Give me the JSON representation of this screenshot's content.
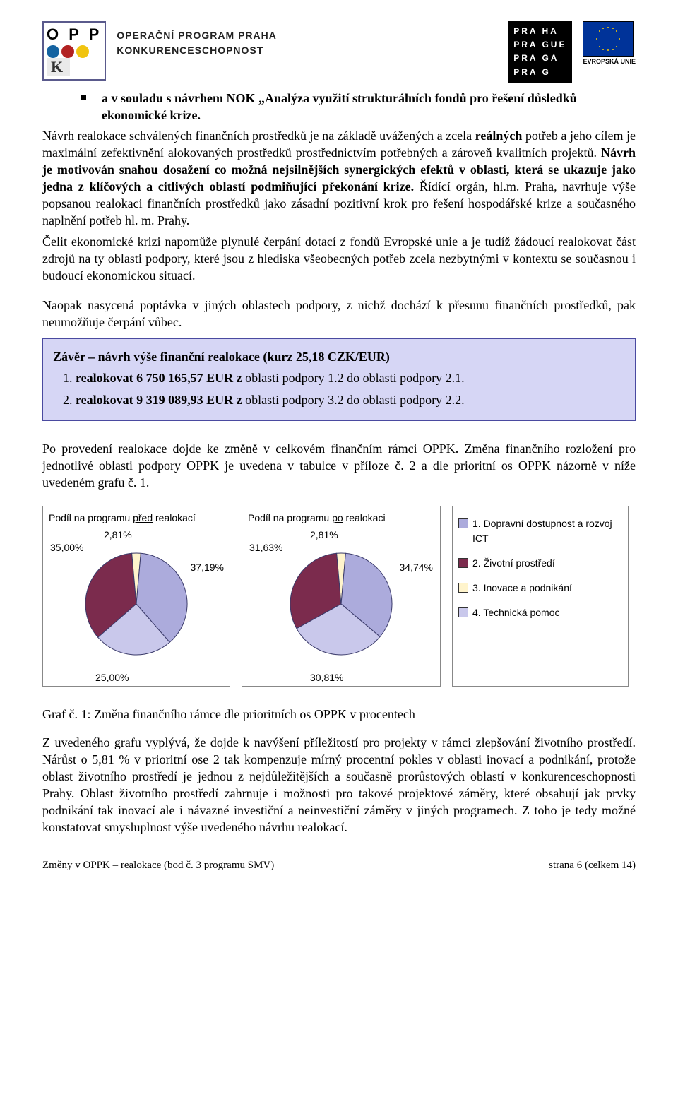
{
  "header": {
    "oppk": "O P P",
    "oppk_k": "K",
    "program_line1": "OPERAČNÍ PROGRAM PRAHA",
    "program_line2": "KONKURENCESCHOPNOST",
    "praha_lines": [
      "PRA HA",
      "PRA GUE",
      "PRA GA",
      "PRA G"
    ],
    "eu_label": "EVROPSKÁ UNIE"
  },
  "bullet": "a v souladu s návrhem NOK „Analýza využití strukturálních fondů pro řešení důsledků ekonomické krize.",
  "p1_a": "Návrh realokace schválených finančních prostředků je na základě uvážených a zcela ",
  "p1_b": "reálných",
  "p1_c": " potřeb a jeho cílem je maximální zefektivnění alokovaných prostředků prostřednictvím potřebných a zároveň kvalitních projektů. ",
  "p1_d": "Návrh je motivován snahou dosažení co možná nejsilnějších synergických efektů v oblasti, která se ukazuje jako jedna z klíčových a citlivých oblastí podmiňující překonání krize.",
  "p1_e": " Řídící orgán, hl.m. Praha, navrhuje výše popsanou realokaci finančních prostředků jako zásadní pozitivní krok pro řešení hospodářské krize a současného naplnění potřeb hl. m. Prahy.",
  "p2": "Čelit ekonomické krizi napomůže plynulé čerpání dotací z fondů Evropské unie a je tudíž žádoucí realokovat část zdrojů na ty oblasti podpory, které jsou z hlediska všeobecných potřeb zcela nezbytnými v kontextu se současnou i budoucí ekonomickou situací.",
  "p3": "Naopak nasycená poptávka v jiných oblastech podpory, z nichž dochází k přesunu finančních prostředků, pak neumožňuje čerpání vůbec.",
  "callout": {
    "title": "Závěr – návrh výše finanční realokace (kurz 25,18 CZK/EUR)",
    "l1a": "1. ",
    "l1b": "realokovat 6 750 165,57 EUR z",
    "l1c": " oblasti podpory 1.2 do oblasti podpory 2.1.",
    "l2a": "2. ",
    "l2b": "realokovat 9 319 089,93 EUR z",
    "l2c": " oblasti podpory 3.2 do oblasti podpory 2.2."
  },
  "p4": "Po provedení realokace dojde ke změně v celkovém finančním rámci OPPK. Změna finančního rozložení pro jednotlivé oblasti podpory OPPK je uvedena v tabulce v příloze č. 2 a dle prioritní os OPPK názorně v níže uvedeném grafu č. 1.",
  "chart_before": {
    "title": "Podíl na programu před realokací",
    "type": "pie",
    "labels": [
      "35,00%",
      "2,81%",
      "37,19%",
      "25,00%"
    ],
    "values": [
      35.0,
      2.81,
      37.19,
      25.0
    ],
    "colors": [
      "#7b2b4d",
      "#fff4cc",
      "#acabdc",
      "#c9c8eb"
    ],
    "border_color": "#3a3a6a",
    "background": "#ffffff",
    "label_fontsize": 14
  },
  "chart_after": {
    "title": "Podíl na programu po realokaci",
    "type": "pie",
    "labels": [
      "31,63%",
      "2,81%",
      "34,74%",
      "30,81%"
    ],
    "values": [
      31.63,
      2.81,
      34.74,
      30.81
    ],
    "colors": [
      "#7b2b4d",
      "#fff4cc",
      "#acabdc",
      "#c9c8eb"
    ],
    "border_color": "#3a3a6a",
    "background": "#ffffff",
    "label_fontsize": 14
  },
  "legend": {
    "items": [
      {
        "mark": "leg-blue",
        "text": "1. Dopravní dostupnost a rozvoj ICT"
      },
      {
        "mark": "leg-maroon",
        "text": "2. Životní prostředí"
      },
      {
        "mark": "leg-cream",
        "text": "3. Inovace a podnikání"
      },
      {
        "mark": "leg-lav",
        "text": "4. Technická pomoc"
      }
    ]
  },
  "caption": "Graf č. 1: Změna finančního rámce dle prioritních os OPPK v procentech",
  "p5": "Z uvedeného grafu vyplývá, že dojde k navýšení příležitostí pro projekty v rámci zlepšování životního prostředí. Nárůst o 5,81 % v prioritní ose 2 tak kompenzuje mírný procentní pokles v oblasti inovací a podnikání, protože oblast životního prostředí je jednou z nejdůležitějších a současně prorůstových oblastí v konkurenceschopnosti Prahy. Oblast životního prostředí zahrnuje i možnosti pro takové projektové záměry, které obsahují jak prvky podnikání tak inovací ale i návazné investiční a neinvestiční záměry v jiných programech. Z toho je tedy možné konstatovat smysluplnost výše uvedeného návrhu realokací.",
  "footer": {
    "left": "Změny v OPPK – realokace (bod č. 3 programu SMV)",
    "right": "strana 6 (celkem 14)"
  }
}
